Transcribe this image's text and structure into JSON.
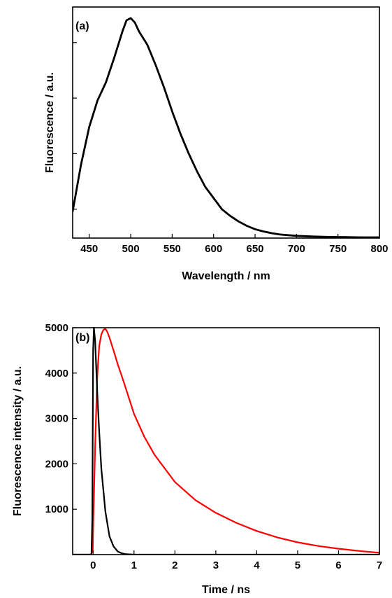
{
  "chart_data": [
    {
      "type": "line",
      "panel_label": "(a)",
      "xlabel": "Wavelength / nm",
      "ylabel": "Fluorescence / a.u.",
      "xlim": [
        430,
        800
      ],
      "ylim": [
        0,
        1.04
      ],
      "xticks": [
        450,
        500,
        550,
        600,
        650,
        700,
        750,
        800
      ],
      "yticks": [
        0.13,
        0.38,
        0.63,
        0.88
      ],
      "show_y_tick_labels": false,
      "grid": false,
      "series": [
        {
          "color": "#000000",
          "x": [
            430,
            440,
            450,
            460,
            470,
            480,
            490,
            495,
            500,
            505,
            510,
            520,
            530,
            540,
            550,
            560,
            570,
            580,
            590,
            600,
            610,
            620,
            630,
            640,
            650,
            660,
            670,
            680,
            700,
            720,
            740,
            760,
            780,
            800
          ],
          "y": [
            0.12,
            0.33,
            0.5,
            0.62,
            0.7,
            0.81,
            0.93,
            0.98,
            0.99,
            0.97,
            0.93,
            0.87,
            0.78,
            0.68,
            0.57,
            0.47,
            0.38,
            0.3,
            0.23,
            0.18,
            0.13,
            0.1,
            0.075,
            0.055,
            0.04,
            0.03,
            0.022,
            0.016,
            0.01,
            0.007,
            0.005,
            0.004,
            0.003,
            0.003
          ]
        }
      ]
    },
    {
      "type": "line",
      "panel_label": "(b)",
      "xlabel": "Time / ns",
      "ylabel": "Fluorescence intensity / a.u.",
      "xlim": [
        -0.5,
        7
      ],
      "ylim": [
        0,
        5000
      ],
      "xticks": [
        0,
        1,
        2,
        3,
        4,
        5,
        6,
        7
      ],
      "yticks": [
        1000,
        2000,
        3000,
        4000,
        5000
      ],
      "grid": false,
      "series": [
        {
          "color": "#ff0000",
          "x": [
            -0.5,
            -0.05,
            -0.01,
            0.0,
            0.05,
            0.1,
            0.15,
            0.2,
            0.25,
            0.3,
            0.35,
            0.4,
            0.5,
            0.6,
            0.75,
            1.0,
            1.25,
            1.5,
            1.75,
            2.0,
            2.5,
            3.0,
            3.5,
            4.0,
            4.5,
            5.0,
            5.5,
            6.0,
            6.5,
            7.0
          ],
          "y": [
            0,
            0,
            100,
            600,
            2400,
            3900,
            4600,
            4850,
            4950,
            4980,
            4900,
            4780,
            4500,
            4200,
            3800,
            3100,
            2600,
            2200,
            1900,
            1600,
            1200,
            920,
            700,
            520,
            380,
            270,
            190,
            130,
            80,
            40
          ]
        },
        {
          "color": "#000000",
          "x": [
            -0.5,
            -0.04,
            -0.02,
            0.0,
            0.02,
            0.05,
            0.1,
            0.15,
            0.2,
            0.3,
            0.4,
            0.5,
            0.6,
            0.7,
            0.8,
            1.0,
            1.5,
            7.0
          ],
          "y": [
            0,
            0,
            800,
            4500,
            5000,
            4700,
            3600,
            2700,
            1900,
            950,
            400,
            180,
            70,
            30,
            10,
            0,
            0,
            0
          ]
        }
      ]
    }
  ]
}
